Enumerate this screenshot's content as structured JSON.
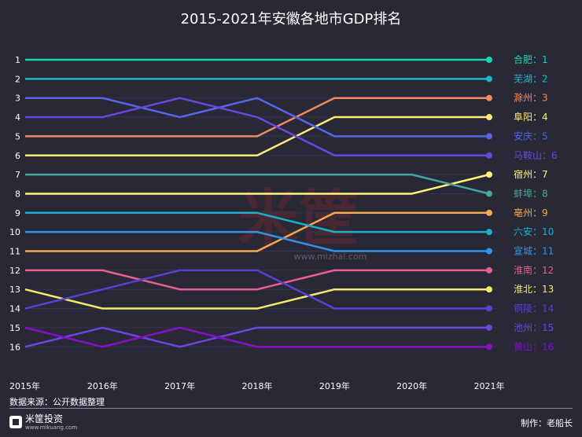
{
  "title": "2015-2021年安徽各地市GDP排名",
  "source": "数据来源：公开数据整理",
  "credit": "制作：老船长",
  "logo": {
    "name": "米筐投资",
    "site": "www.mikuang.com"
  },
  "watermark": {
    "text": "米筐",
    "site": "www.mizhai.com"
  },
  "chart_data": {
    "type": "line",
    "title": "2015-2021年安徽各地市GDP排名",
    "x": [
      "2015年",
      "2016年",
      "2017年",
      "2018年",
      "2019年",
      "2020年",
      "2021年"
    ],
    "y_ticks": [
      "1",
      "2",
      "3",
      "4",
      "5",
      "6",
      "7",
      "8",
      "9",
      "10",
      "11",
      "12",
      "13",
      "14",
      "15",
      "16"
    ],
    "ylim": [
      1,
      16
    ],
    "y_inverted": true,
    "grid": true,
    "series": [
      {
        "name": "合肥",
        "final_label": "合肥：1",
        "color": "#1ad5b0",
        "values": [
          1,
          1,
          1,
          1,
          1,
          1,
          1
        ]
      },
      {
        "name": "芜湖",
        "final_label": "芜湖：2",
        "color": "#1cb6c9",
        "values": [
          2,
          2,
          2,
          2,
          2,
          2,
          2
        ]
      },
      {
        "name": "滁州",
        "final_label": "滁州：3",
        "color": "#f08a63",
        "values": [
          5,
          5,
          5,
          5,
          3,
          3,
          3
        ]
      },
      {
        "name": "阜阳",
        "final_label": "阜阳：4",
        "color": "#fbe978",
        "values": [
          6,
          6,
          6,
          6,
          4,
          4,
          4
        ]
      },
      {
        "name": "安庆",
        "final_label": "安庆：5",
        "color": "#5566e8",
        "values": [
          3,
          3,
          4,
          3,
          5,
          5,
          5
        ]
      },
      {
        "name": "马鞍山",
        "final_label": "马鞍山：6",
        "color": "#6a47e0",
        "values": [
          4,
          4,
          3,
          4,
          6,
          6,
          6
        ]
      },
      {
        "name": "宿州",
        "final_label": "宿州：7",
        "color": "#fff57a",
        "values": [
          8,
          8,
          8,
          8,
          8,
          8,
          7
        ]
      },
      {
        "name": "蚌埠",
        "final_label": "蚌埠：8",
        "color": "#46a898",
        "values": [
          7,
          7,
          7,
          7,
          7,
          7,
          8
        ]
      },
      {
        "name": "亳州",
        "final_label": "亳州：9",
        "color": "#f6a94f",
        "values": [
          11,
          11,
          11,
          11,
          9,
          9,
          9
        ]
      },
      {
        "name": "六安",
        "final_label": "六安：10",
        "color": "#1dafc9",
        "values": [
          9,
          9,
          9,
          9,
          10,
          10,
          10
        ]
      },
      {
        "name": "宣城",
        "final_label": "宣城：11",
        "color": "#2f95e6",
        "values": [
          10,
          10,
          10,
          10,
          11,
          11,
          11
        ]
      },
      {
        "name": "淮南",
        "final_label": "淮南：12",
        "color": "#ea5f8f",
        "values": [
          12,
          12,
          13,
          13,
          12,
          12,
          12
        ]
      },
      {
        "name": "淮北",
        "final_label": "淮北：13",
        "color": "#f7e96c",
        "values": [
          13,
          14,
          14,
          14,
          13,
          13,
          13
        ]
      },
      {
        "name": "铜陵",
        "final_label": "铜陵：14",
        "color": "#5a3fd4",
        "values": [
          14,
          13,
          12,
          12,
          14,
          14,
          14
        ]
      },
      {
        "name": "池州",
        "final_label": "池州：15",
        "color": "#6b46e0",
        "values": [
          16,
          15,
          16,
          15,
          15,
          15,
          15
        ]
      },
      {
        "name": "黄山",
        "final_label": "黄山：16",
        "color": "#8410c8",
        "values": [
          15,
          16,
          15,
          16,
          16,
          16,
          16
        ]
      }
    ]
  }
}
